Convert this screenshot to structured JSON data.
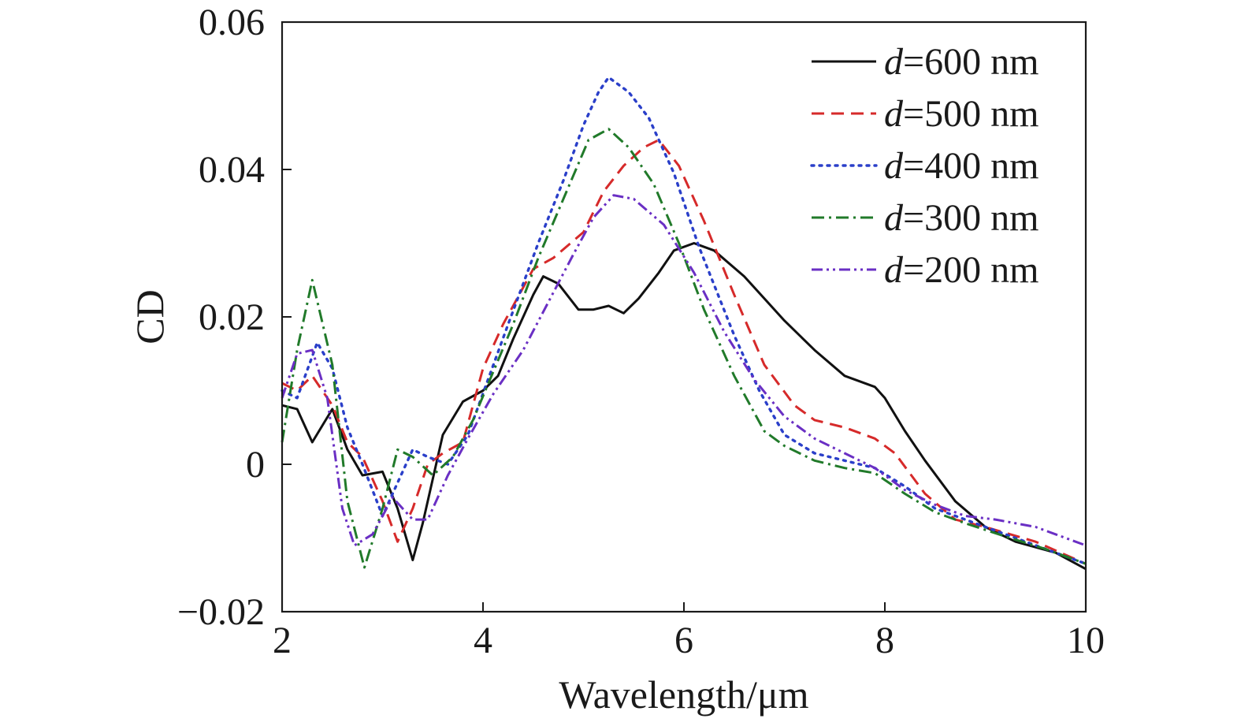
{
  "chart_data": {
    "type": "line",
    "xlabel": "Wavelength/μm",
    "ylabel": "CD",
    "xlim": [
      2,
      10
    ],
    "ylim": [
      -0.02,
      0.06
    ],
    "x_ticks": [
      {
        "value": 2,
        "label": "2"
      },
      {
        "value": 4,
        "label": "4"
      },
      {
        "value": 6,
        "label": "6"
      },
      {
        "value": 8,
        "label": "8"
      },
      {
        "value": 10,
        "label": "10"
      }
    ],
    "y_ticks": [
      {
        "value": -0.02,
        "label": "−0.02"
      },
      {
        "value": 0,
        "label": "0"
      },
      {
        "value": 0.02,
        "label": "0.02"
      },
      {
        "value": 0.04,
        "label": "0.04"
      },
      {
        "value": 0.06,
        "label": "0.06"
      }
    ],
    "grid": false,
    "legend_position": "top-right",
    "series": [
      {
        "name": "d=600 nm",
        "name_var": "d",
        "name_rest": "=600 nm",
        "color": "#111111",
        "dash": "solid",
        "points": [
          [
            2,
            0.008
          ],
          [
            2.15,
            0.0075
          ],
          [
            2.3,
            0.003
          ],
          [
            2.5,
            0.0075
          ],
          [
            2.65,
            0.002
          ],
          [
            2.8,
            -0.0015
          ],
          [
            3.0,
            -0.001
          ],
          [
            3.15,
            -0.006
          ],
          [
            3.3,
            -0.013
          ],
          [
            3.4,
            -0.008
          ],
          [
            3.6,
            0.004
          ],
          [
            3.8,
            0.0085
          ],
          [
            4.0,
            0.01
          ],
          [
            4.15,
            0.012
          ],
          [
            4.3,
            0.017
          ],
          [
            4.5,
            0.023
          ],
          [
            4.6,
            0.0255
          ],
          [
            4.75,
            0.0245
          ],
          [
            4.95,
            0.021
          ],
          [
            5.1,
            0.021
          ],
          [
            5.25,
            0.0215
          ],
          [
            5.4,
            0.0205
          ],
          [
            5.55,
            0.0225
          ],
          [
            5.75,
            0.026
          ],
          [
            5.9,
            0.029
          ],
          [
            6.1,
            0.03
          ],
          [
            6.3,
            0.029
          ],
          [
            6.6,
            0.0255
          ],
          [
            7.0,
            0.0195
          ],
          [
            7.3,
            0.0155
          ],
          [
            7.6,
            0.012
          ],
          [
            7.9,
            0.0105
          ],
          [
            8.0,
            0.009
          ],
          [
            8.2,
            0.0045
          ],
          [
            8.4,
            0.0005
          ],
          [
            8.7,
            -0.005
          ],
          [
            9.0,
            -0.0085
          ],
          [
            9.3,
            -0.0105
          ],
          [
            9.7,
            -0.012
          ],
          [
            10,
            -0.0142
          ]
        ]
      },
      {
        "name": "d=500 nm",
        "name_var": "d",
        "name_rest": "=500 nm",
        "color": "#d62a2a",
        "dash": "dashed",
        "points": [
          [
            2,
            0.011
          ],
          [
            2.15,
            0.01
          ],
          [
            2.3,
            0.012
          ],
          [
            2.5,
            0.008
          ],
          [
            2.65,
            0.003
          ],
          [
            2.8,
            0.001
          ],
          [
            3.0,
            -0.005
          ],
          [
            3.15,
            -0.0105
          ],
          [
            3.3,
            -0.006
          ],
          [
            3.45,
            0.0
          ],
          [
            3.6,
            0.0015
          ],
          [
            3.8,
            0.003
          ],
          [
            4.0,
            0.013
          ],
          [
            4.2,
            0.019
          ],
          [
            4.5,
            0.0265
          ],
          [
            4.7,
            0.028
          ],
          [
            5.0,
            0.0315
          ],
          [
            5.2,
            0.037
          ],
          [
            5.4,
            0.0405
          ],
          [
            5.6,
            0.043
          ],
          [
            5.75,
            0.044
          ],
          [
            5.95,
            0.0405
          ],
          [
            6.2,
            0.033
          ],
          [
            6.5,
            0.023
          ],
          [
            6.8,
            0.0135
          ],
          [
            7.1,
            0.008
          ],
          [
            7.3,
            0.006
          ],
          [
            7.6,
            0.005
          ],
          [
            7.9,
            0.0035
          ],
          [
            8.1,
            0.0015
          ],
          [
            8.4,
            -0.004
          ],
          [
            8.7,
            -0.0075
          ],
          [
            9.0,
            -0.0085
          ],
          [
            9.5,
            -0.0105
          ],
          [
            10,
            -0.0135
          ]
        ]
      },
      {
        "name": "d=400 nm",
        "name_var": "d",
        "name_rest": "=400 nm",
        "color": "#2a3fc9",
        "dash": "dotted",
        "points": [
          [
            2,
            0.01
          ],
          [
            2.15,
            0.009
          ],
          [
            2.35,
            0.0165
          ],
          [
            2.5,
            0.013
          ],
          [
            2.65,
            0.005
          ],
          [
            2.8,
            0.0
          ],
          [
            3.0,
            -0.007
          ],
          [
            3.15,
            -0.0025
          ],
          [
            3.3,
            0.002
          ],
          [
            3.45,
            0.001
          ],
          [
            3.65,
            0.0
          ],
          [
            3.85,
            0.004
          ],
          [
            4.05,
            0.0115
          ],
          [
            4.25,
            0.019
          ],
          [
            4.55,
            0.03
          ],
          [
            4.8,
            0.0385
          ],
          [
            5.0,
            0.046
          ],
          [
            5.15,
            0.0505
          ],
          [
            5.25,
            0.0525
          ],
          [
            5.45,
            0.0505
          ],
          [
            5.65,
            0.047
          ],
          [
            5.9,
            0.0395
          ],
          [
            6.15,
            0.0295
          ],
          [
            6.5,
            0.0175
          ],
          [
            6.75,
            0.01
          ],
          [
            7.0,
            0.004
          ],
          [
            7.3,
            0.0015
          ],
          [
            7.6,
            0.0005
          ],
          [
            7.9,
            -0.0005
          ],
          [
            8.2,
            -0.003
          ],
          [
            8.5,
            -0.006
          ],
          [
            8.8,
            -0.0075
          ],
          [
            9.2,
            -0.0095
          ],
          [
            9.6,
            -0.0115
          ],
          [
            10,
            -0.0135
          ]
        ]
      },
      {
        "name": "d=300 nm",
        "name_var": "d",
        "name_rest": "=300 nm",
        "color": "#217a2a",
        "dash": "dashdot",
        "points": [
          [
            2,
            0.003
          ],
          [
            2.15,
            0.0155
          ],
          [
            2.3,
            0.025
          ],
          [
            2.5,
            0.0135
          ],
          [
            2.65,
            -0.005
          ],
          [
            2.82,
            -0.014
          ],
          [
            3.0,
            -0.006
          ],
          [
            3.15,
            0.002
          ],
          [
            3.3,
            0.001
          ],
          [
            3.5,
            -0.0015
          ],
          [
            3.7,
            0.001
          ],
          [
            3.9,
            0.006
          ],
          [
            4.1,
            0.0125
          ],
          [
            4.3,
            0.019
          ],
          [
            4.55,
            0.028
          ],
          [
            4.8,
            0.036
          ],
          [
            5.05,
            0.044
          ],
          [
            5.25,
            0.0455
          ],
          [
            5.45,
            0.043
          ],
          [
            5.7,
            0.038
          ],
          [
            5.95,
            0.03
          ],
          [
            6.2,
            0.021
          ],
          [
            6.5,
            0.012
          ],
          [
            6.8,
            0.0045
          ],
          [
            7.0,
            0.0025
          ],
          [
            7.3,
            0.0005
          ],
          [
            7.6,
            -0.0005
          ],
          [
            7.9,
            -0.0012
          ],
          [
            8.2,
            -0.004
          ],
          [
            8.5,
            -0.0065
          ],
          [
            8.8,
            -0.008
          ],
          [
            9.2,
            -0.0098
          ],
          [
            9.6,
            -0.0115
          ],
          [
            10,
            -0.0135
          ]
        ]
      },
      {
        "name": "d=200 nm",
        "name_var": "d",
        "name_rest": "=200 nm",
        "color": "#6a2fc4",
        "dash": "dashdotdot",
        "points": [
          [
            2,
            0.009
          ],
          [
            2.15,
            0.015
          ],
          [
            2.3,
            0.0155
          ],
          [
            2.45,
            0.009
          ],
          [
            2.6,
            -0.006
          ],
          [
            2.72,
            -0.011
          ],
          [
            2.9,
            -0.0095
          ],
          [
            3.1,
            -0.0045
          ],
          [
            3.3,
            -0.0075
          ],
          [
            3.45,
            -0.0075
          ],
          [
            3.65,
            -0.0015
          ],
          [
            3.85,
            0.0035
          ],
          [
            4.1,
            0.0095
          ],
          [
            4.4,
            0.0155
          ],
          [
            4.65,
            0.022
          ],
          [
            4.9,
            0.0285
          ],
          [
            5.1,
            0.0335
          ],
          [
            5.3,
            0.0365
          ],
          [
            5.5,
            0.036
          ],
          [
            5.8,
            0.0325
          ],
          [
            6.1,
            0.026
          ],
          [
            6.4,
            0.018
          ],
          [
            6.7,
            0.0115
          ],
          [
            7.0,
            0.0065
          ],
          [
            7.3,
            0.0035
          ],
          [
            7.6,
            0.0015
          ],
          [
            7.9,
            -0.0005
          ],
          [
            8.2,
            -0.0035
          ],
          [
            8.5,
            -0.0055
          ],
          [
            8.8,
            -0.007
          ],
          [
            9.1,
            -0.0075
          ],
          [
            9.5,
            -0.0085
          ],
          [
            10,
            -0.011
          ]
        ]
      }
    ]
  }
}
